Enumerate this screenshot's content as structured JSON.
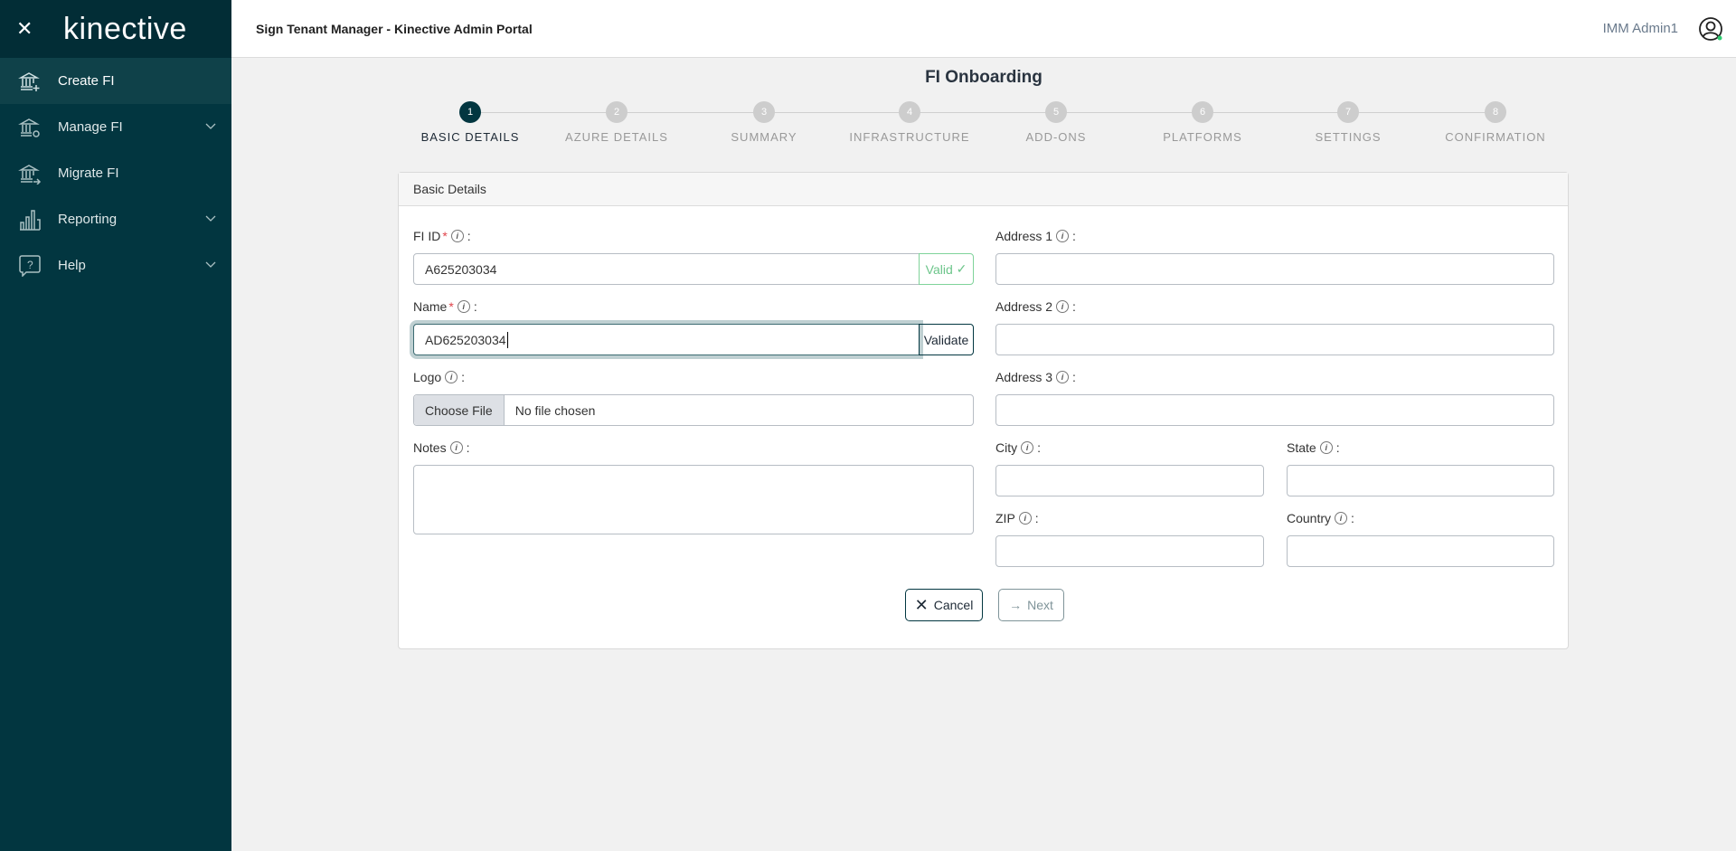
{
  "sidebar": {
    "logo": "kinective",
    "items": [
      {
        "label": "Create FI",
        "icon": "bank-plus-icon",
        "active": true
      },
      {
        "label": "Manage FI",
        "icon": "bank-gear-icon",
        "expandable": true
      },
      {
        "label": "Migrate FI",
        "icon": "bank-arrow-icon"
      },
      {
        "label": "Reporting",
        "icon": "bar-chart-icon",
        "expandable": true
      },
      {
        "label": "Help",
        "icon": "help-bubble-icon",
        "expandable": true
      }
    ]
  },
  "header": {
    "title": "Sign Tenant Manager - Kinective Admin Portal",
    "user": "IMM Admin1"
  },
  "page": {
    "title": "FI Onboarding"
  },
  "stepper": {
    "current": 1,
    "steps": [
      {
        "num": "1",
        "label": "BASIC DETAILS"
      },
      {
        "num": "2",
        "label": "AZURE DETAILS"
      },
      {
        "num": "3",
        "label": "SUMMARY"
      },
      {
        "num": "4",
        "label": "INFRASTRUCTURE"
      },
      {
        "num": "5",
        "label": "ADD-ONS"
      },
      {
        "num": "6",
        "label": "PLATFORMS"
      },
      {
        "num": "7",
        "label": "SETTINGS"
      },
      {
        "num": "8",
        "label": "CONFIRMATION"
      }
    ]
  },
  "form": {
    "section": "Basic Details",
    "fi_id": {
      "label": "FI ID",
      "value": "A625203034",
      "status": "Valid"
    },
    "name": {
      "label": "Name",
      "value": "AD625203034",
      "button": "Validate"
    },
    "logo": {
      "label": "Logo",
      "button": "Choose File",
      "status": "No file chosen"
    },
    "notes": {
      "label": "Notes",
      "value": ""
    },
    "address1": {
      "label": "Address 1",
      "value": ""
    },
    "address2": {
      "label": "Address 2",
      "value": ""
    },
    "address3": {
      "label": "Address 3",
      "value": ""
    },
    "city": {
      "label": "City",
      "value": ""
    },
    "state": {
      "label": "State",
      "value": ""
    },
    "zip": {
      "label": "ZIP",
      "value": ""
    },
    "country": {
      "label": "Country",
      "value": ""
    },
    "required_marker": "*",
    "colon": ":",
    "info": "i"
  },
  "actions": {
    "cancel": "Cancel",
    "next": "Next"
  },
  "colors": {
    "sidebar": "#023640",
    "accent": "#023640",
    "valid": "#5cb85c",
    "required": "#e0434a"
  }
}
